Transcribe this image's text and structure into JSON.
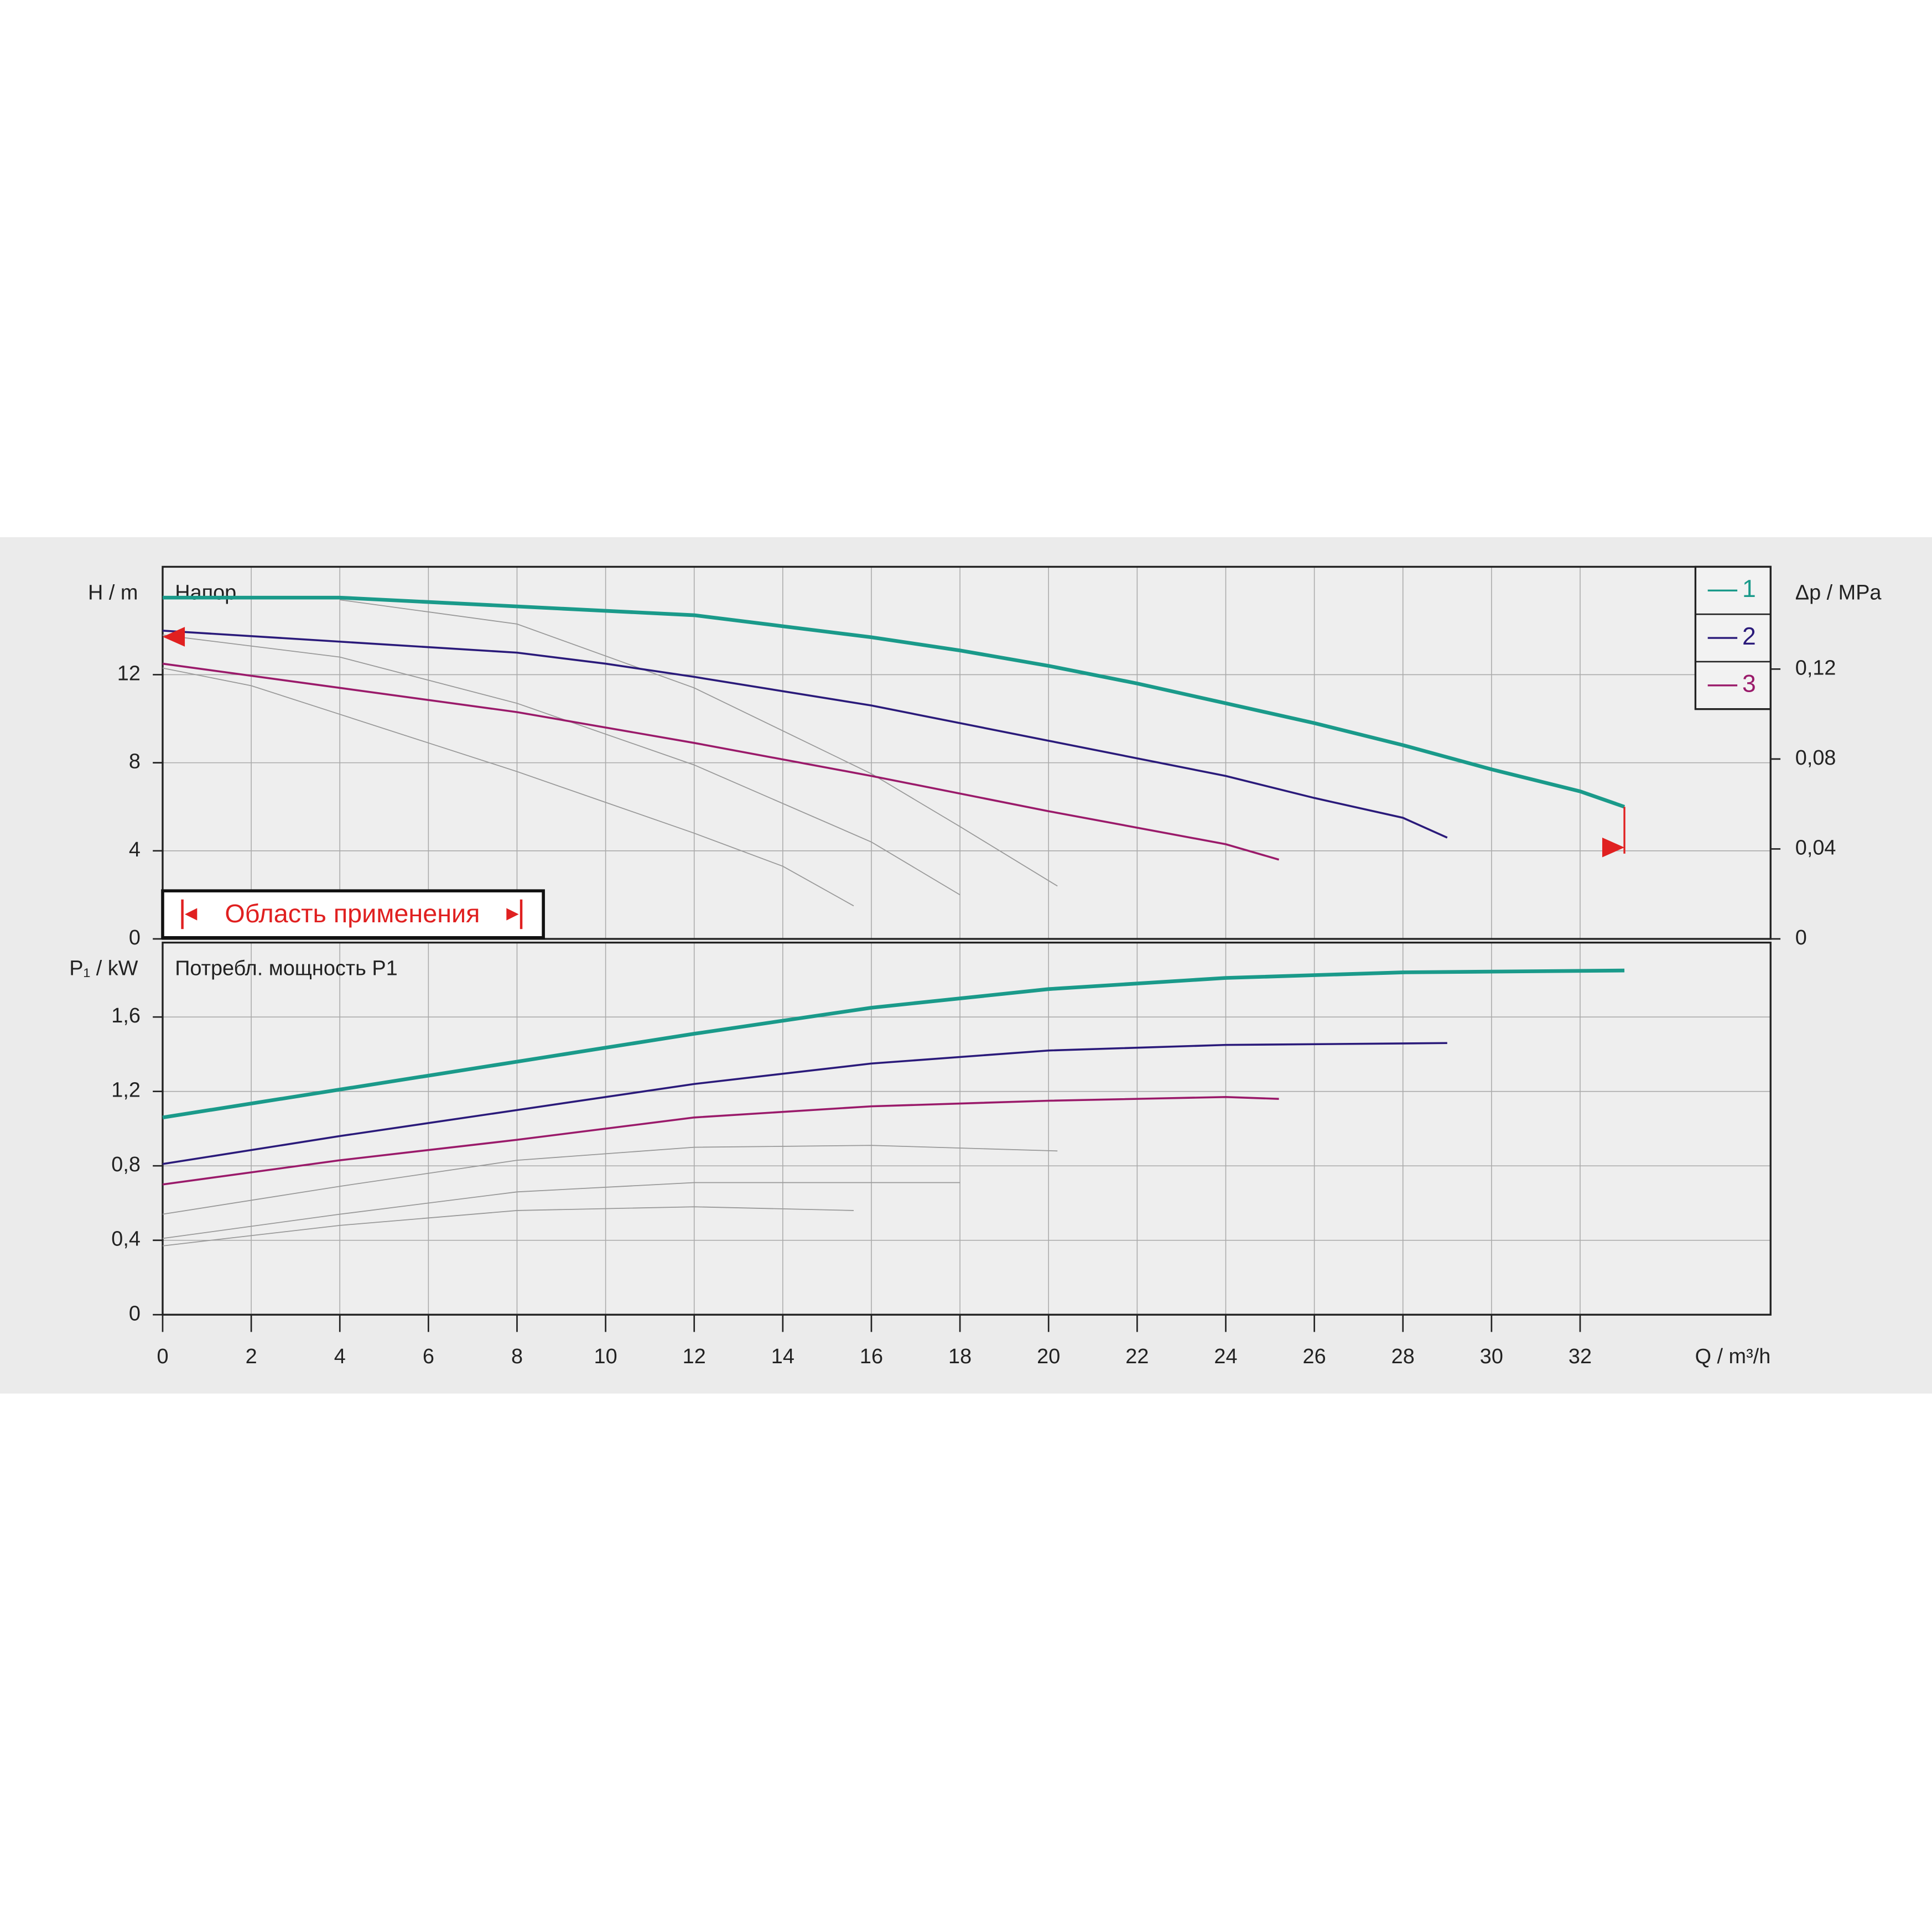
{
  "chart_data": [
    {
      "type": "line",
      "panel_label": "Напор",
      "ylabel": "H / m",
      "y2label": "Δp / MPa",
      "annotation": "Область применения",
      "legend": "top-right",
      "grid": true,
      "xlim": [
        0,
        36.3
      ],
      "xticks": [
        0,
        2,
        4,
        6,
        8,
        10,
        12,
        14,
        16,
        18,
        20,
        22,
        24,
        26,
        28,
        30,
        32
      ],
      "ylim": [
        0,
        16.9
      ],
      "yticks": [
        0,
        4,
        8,
        12
      ],
      "y2lim": [
        0,
        0.1655
      ],
      "y2ticks": [
        0,
        {
          "value": 0.04,
          "label": "0,04"
        },
        {
          "value": 0.08,
          "label": "0,08"
        },
        {
          "value": 0.12,
          "label": "0,12"
        }
      ],
      "series": [
        {
          "name": "1",
          "color": "#1a9a8a",
          "x": [
            0,
            4,
            8,
            12,
            14,
            16,
            18,
            20,
            22,
            24,
            26,
            28,
            30,
            32,
            33
          ],
          "values": [
            15.5,
            15.5,
            15.1,
            14.7,
            14.2,
            13.7,
            13.1,
            12.4,
            11.6,
            10.7,
            9.8,
            8.8,
            7.7,
            6.7,
            6.0
          ]
        },
        {
          "name": "2",
          "color": "#2a1a7a",
          "x": [
            0,
            4,
            8,
            10,
            12,
            16,
            20,
            24,
            26,
            28,
            29
          ],
          "values": [
            14.0,
            13.5,
            13.0,
            12.5,
            11.9,
            10.6,
            9.0,
            7.4,
            6.4,
            5.5,
            4.6
          ]
        },
        {
          "name": "3",
          "color": "#9a1a6a",
          "x": [
            0,
            4,
            8,
            12,
            16,
            20,
            24,
            25.2
          ],
          "values": [
            12.5,
            11.4,
            10.3,
            8.9,
            7.4,
            5.8,
            4.3,
            3.6
          ]
        },
        {
          "color": "#999999",
          "x": [
            0,
            2,
            4,
            6,
            8,
            10,
            12,
            14,
            15.6
          ],
          "values": [
            12.3,
            11.5,
            10.2,
            8.9,
            7.6,
            6.2,
            4.8,
            3.3,
            1.5
          ]
        },
        {
          "color": "#999999",
          "x": [
            0,
            4,
            8,
            12,
            16,
            18
          ],
          "values": [
            13.8,
            12.8,
            10.7,
            7.9,
            4.4,
            2.0
          ]
        },
        {
          "color": "#999999",
          "x": [
            4,
            8,
            12,
            16,
            18,
            20.2
          ],
          "values": [
            15.4,
            14.3,
            11.4,
            7.5,
            5.1,
            2.4
          ]
        }
      ]
    },
    {
      "type": "line",
      "panel_label": "Потребл. мощность P1",
      "ylabel": "P₁ / kW",
      "xlabel": "Q / m³/h",
      "grid": true,
      "xlim": [
        0,
        36.3
      ],
      "xticks": [
        0,
        2,
        4,
        6,
        8,
        10,
        12,
        14,
        16,
        18,
        20,
        22,
        24,
        26,
        28,
        30,
        32
      ],
      "ylim": [
        0,
        2.0
      ],
      "yticks": [
        0,
        {
          "value": 0.4,
          "label": "0,4"
        },
        {
          "value": 0.8,
          "label": "0,8"
        },
        {
          "value": 1.2,
          "label": "1,2"
        },
        {
          "value": 1.6,
          "label": "1,6"
        }
      ],
      "series": [
        {
          "color": "#1a9a8a",
          "x": [
            0,
            4,
            8,
            12,
            16,
            20,
            24,
            28,
            33
          ],
          "values": [
            1.06,
            1.21,
            1.36,
            1.51,
            1.65,
            1.75,
            1.81,
            1.84,
            1.85
          ]
        },
        {
          "color": "#2a1a7a",
          "x": [
            0,
            4,
            8,
            12,
            16,
            20,
            24,
            29
          ],
          "values": [
            0.81,
            0.96,
            1.1,
            1.24,
            1.35,
            1.42,
            1.45,
            1.46
          ]
        },
        {
          "color": "#9a1a6a",
          "x": [
            0,
            4,
            8,
            12,
            16,
            20,
            24,
            25.2
          ],
          "values": [
            0.7,
            0.83,
            0.94,
            1.06,
            1.12,
            1.15,
            1.17,
            1.16
          ]
        },
        {
          "color": "#999999",
          "x": [
            0,
            4,
            8,
            12,
            16,
            20.2
          ],
          "values": [
            0.54,
            0.69,
            0.83,
            0.9,
            0.91,
            0.88
          ]
        },
        {
          "color": "#999999",
          "x": [
            0,
            4,
            8,
            12,
            18
          ],
          "values": [
            0.41,
            0.54,
            0.66,
            0.71,
            0.71
          ]
        },
        {
          "color": "#999999",
          "x": [
            0,
            4,
            8,
            12,
            15.6
          ],
          "values": [
            0.37,
            0.48,
            0.56,
            0.58,
            0.56
          ]
        }
      ]
    }
  ]
}
